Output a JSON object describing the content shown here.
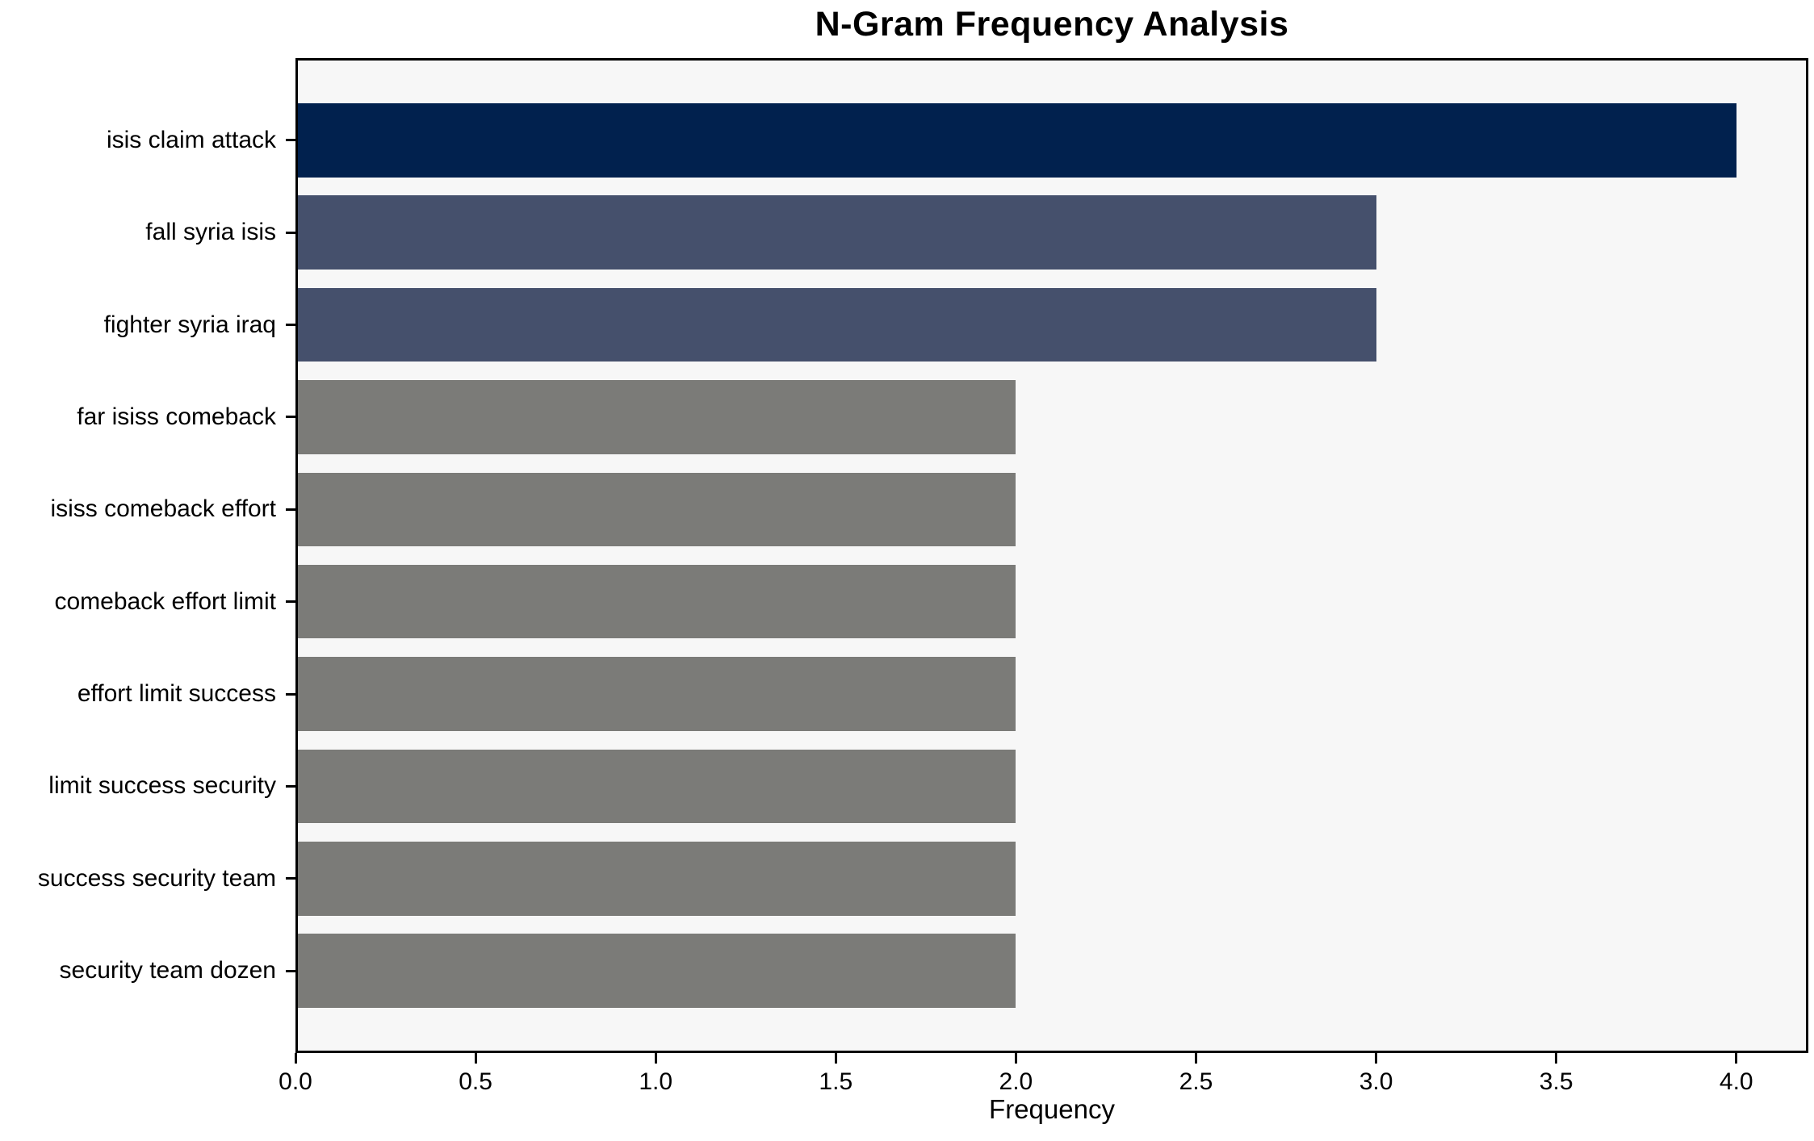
{
  "chart_data": {
    "type": "bar",
    "orientation": "horizontal",
    "title": "N-Gram Frequency Analysis",
    "xlabel": "Frequency",
    "ylabel": "",
    "categories": [
      "isis claim attack",
      "fall syria isis",
      "fighter syria iraq",
      "far isiss comeback",
      "isiss comeback effort",
      "comeback effort limit",
      "effort limit success",
      "limit success security",
      "success security team",
      "security team dozen"
    ],
    "values": [
      4,
      3,
      3,
      2,
      2,
      2,
      2,
      2,
      2,
      2
    ],
    "bar_colors": [
      "#01214e",
      "#45506c",
      "#45506c",
      "#7b7b78",
      "#7b7b78",
      "#7b7b78",
      "#7b7b78",
      "#7b7b78",
      "#7b7b78",
      "#7b7b78"
    ],
    "xlim": [
      0,
      4.2
    ],
    "x_ticks": [
      0.0,
      0.5,
      1.0,
      1.5,
      2.0,
      2.5,
      3.0,
      3.5,
      4.0
    ],
    "x_tick_labels": [
      "0.0",
      "0.5",
      "1.0",
      "1.5",
      "2.0",
      "2.5",
      "3.0",
      "3.5",
      "4.0"
    ],
    "grid": false,
    "legend": null,
    "plot_background": "#f7f7f7",
    "figure_background": "#ffffff",
    "spine_color": "#000000",
    "text_color": "#000000"
  }
}
